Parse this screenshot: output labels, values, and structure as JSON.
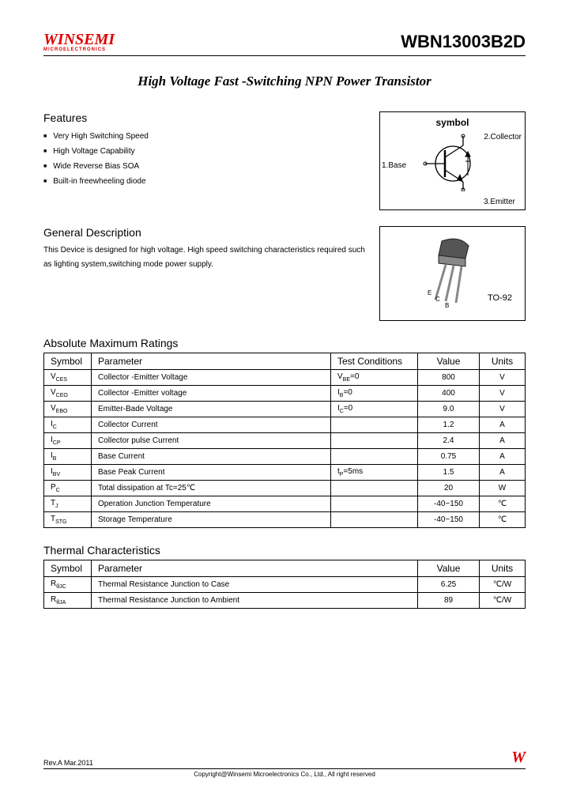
{
  "header": {
    "logo_main": "WINSEMI",
    "logo_sub": "MICROELECTRONICS",
    "part_number": "WBN13003B2D"
  },
  "title": "High Voltage Fast -Switching NPN Power Transistor",
  "features": {
    "heading": "Features",
    "items": [
      "Very High Switching Speed",
      "High Voltage Capability",
      "Wide Reverse Bias SOA",
      "Built-in freewheeling diode"
    ]
  },
  "symbol_fig": {
    "label": "symbol",
    "pin1": "1.Base",
    "pin2": "2.Collector",
    "pin3": "3.Emitter"
  },
  "general_desc": {
    "heading": "General Description",
    "text": "This Device is designed for high voltage. High speed switching characteristics required such as lighting system,switching mode power supply."
  },
  "package_fig": {
    "pkg_name": "TO-92",
    "pins": [
      "E",
      "C",
      "B"
    ]
  },
  "abs_max": {
    "heading": "Absolute Maximum Ratings",
    "columns": [
      "Symbol",
      "Parameter",
      "Test Conditions",
      "Value",
      "Units"
    ],
    "rows": [
      {
        "sym": "V",
        "sub": "CES",
        "param": "Collector -Emitter Voltage",
        "cond_pre": "V",
        "cond_sub": "BE",
        "cond_post": "=0",
        "value": "800",
        "unit": "V"
      },
      {
        "sym": "V",
        "sub": "CEO",
        "param": "Collector -Emitter voltage",
        "cond_pre": "I",
        "cond_sub": "B",
        "cond_post": "=0",
        "value": "400",
        "unit": "V"
      },
      {
        "sym": "V",
        "sub": "EBO",
        "param": "Emitter-Bade Voltage",
        "cond_pre": "I",
        "cond_sub": "C",
        "cond_post": "=0",
        "value": "9.0",
        "unit": "V"
      },
      {
        "sym": "I",
        "sub": "C",
        "param": "Collector Current",
        "cond_pre": "",
        "cond_sub": "",
        "cond_post": "",
        "value": "1.2",
        "unit": "A"
      },
      {
        "sym": "I",
        "sub": "CP",
        "param": "Collector pulse Current",
        "cond_pre": "",
        "cond_sub": "",
        "cond_post": "",
        "value": "2.4",
        "unit": "A"
      },
      {
        "sym": "I",
        "sub": "B",
        "param": "Base Current",
        "cond_pre": "",
        "cond_sub": "",
        "cond_post": "",
        "value": "0.75",
        "unit": "A"
      },
      {
        "sym": "I",
        "sub": "BV",
        "param": "Base Peak Current",
        "cond_pre": "t",
        "cond_sub": "P",
        "cond_post": "=5ms",
        "value": "1.5",
        "unit": "A"
      },
      {
        "sym": "P",
        "sub": "C",
        "param": "Total dissipation at Tc=25℃",
        "cond_pre": "",
        "cond_sub": "",
        "cond_post": "",
        "value": "20",
        "unit": "W"
      },
      {
        "sym": "T",
        "sub": "J",
        "param": "Operation Junction Temperature",
        "cond_pre": "",
        "cond_sub": "",
        "cond_post": "",
        "value": "-40~150",
        "unit": "℃"
      },
      {
        "sym": "T",
        "sub": "STG",
        "param": "Storage Temperature",
        "cond_pre": "",
        "cond_sub": "",
        "cond_post": "",
        "value": "-40~150",
        "unit": "℃"
      }
    ]
  },
  "thermal": {
    "heading": "Thermal Characteristics",
    "columns": [
      "Symbol",
      "Parameter",
      "Value",
      "Units"
    ],
    "rows": [
      {
        "sym": "R",
        "sub": "θJC",
        "param": "Thermal Resistance Junction to Case",
        "value": "6.25",
        "unit": "℃/W"
      },
      {
        "sym": "R",
        "sub": "θJA",
        "param": "Thermal Resistance Junction to Ambient",
        "value": "89",
        "unit": "℃/W"
      }
    ]
  },
  "footer": {
    "rev": "Rev.A Mar.2011",
    "logo": "W",
    "copyright": "Copyright@Winsemi Microelectronics Co., Ltd., All right reserved"
  }
}
